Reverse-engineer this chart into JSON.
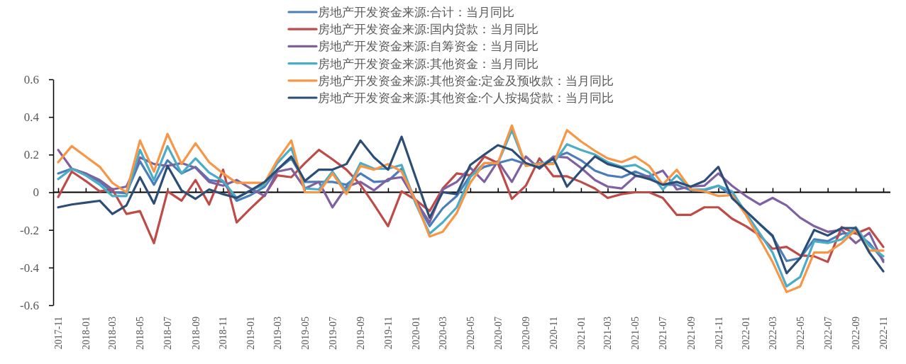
{
  "chart_data": {
    "type": "line",
    "x": [
      "2017-11",
      "2017-12",
      "2018-01",
      "2018-02",
      "2018-03",
      "2018-04",
      "2018-05",
      "2018-06",
      "2018-07",
      "2018-08",
      "2018-09",
      "2018-10",
      "2018-11",
      "2018-12",
      "2019-01",
      "2019-02",
      "2019-03",
      "2019-04",
      "2019-05",
      "2019-06",
      "2019-07",
      "2019-08",
      "2019-09",
      "2019-10",
      "2019-11",
      "2019-12",
      "2020-01",
      "2020-02",
      "2020-03",
      "2020-04",
      "2020-05",
      "2020-06",
      "2020-07",
      "2020-08",
      "2020-09",
      "2020-10",
      "2020-11",
      "2020-12",
      "2021-01",
      "2021-02",
      "2021-03",
      "2021-04",
      "2021-05",
      "2021-06",
      "2021-07",
      "2021-08",
      "2021-09",
      "2021-10",
      "2021-11",
      "2021-12",
      "2022-01",
      "2022-02",
      "2022-03",
      "2022-04",
      "2022-05",
      "2022-06",
      "2022-07",
      "2022-08",
      "2022-09",
      "2022-10",
      "2022-11"
    ],
    "series": [
      {
        "name": "房地产开发资金来源:合计：当月同比",
        "color": "#4a7ebb",
        "values": [
          0.1,
          0.125,
          0.1,
          0.055,
          0.0,
          -0.005,
          0.165,
          0.04,
          0.17,
          0.1,
          0.135,
          0.065,
          0.055,
          -0.045,
          -0.015,
          0.03,
          0.12,
          0.18,
          0.055,
          0.055,
          0.055,
          0.04,
          0.1,
          0.055,
          0.06,
          0.125,
          -0.045,
          -0.18,
          -0.085,
          -0.02,
          0.09,
          0.135,
          0.155,
          0.175,
          0.15,
          0.135,
          0.185,
          0.21,
          0.17,
          0.115,
          0.09,
          0.08,
          0.11,
          0.08,
          0.04,
          0.04,
          0.01,
          0.01,
          0.035,
          -0.02,
          -0.1,
          -0.17,
          -0.235,
          -0.365,
          -0.35,
          -0.25,
          -0.26,
          -0.22,
          -0.215,
          -0.27,
          -0.36
        ]
      },
      {
        "name": "房地产开发资金来源:国内贷款：当月同比",
        "color": "#be4b48",
        "values": [
          -0.025,
          0.11,
          0.06,
          0.005,
          0.015,
          -0.115,
          -0.1,
          -0.27,
          0.005,
          -0.045,
          0.065,
          -0.065,
          0.12,
          -0.16,
          -0.085,
          -0.015,
          0.09,
          0.08,
          0.155,
          0.225,
          0.175,
          0.12,
          0.04,
          -0.065,
          -0.18,
          0.005,
          -0.04,
          -0.1,
          0.02,
          0.1,
          0.09,
          0.19,
          0.155,
          -0.035,
          0.035,
          0.18,
          0.085,
          0.085,
          0.055,
          0.02,
          -0.03,
          -0.01,
          0.0,
          0.0,
          -0.03,
          -0.12,
          -0.12,
          -0.08,
          -0.08,
          -0.14,
          -0.18,
          -0.23,
          -0.3,
          -0.29,
          -0.335,
          -0.34,
          -0.37,
          -0.185,
          -0.22,
          -0.19,
          -0.29
        ]
      },
      {
        "name": "房地产开发资金来源:自筹资金：当月同比",
        "color": "#7f60a0",
        "values": [
          0.225,
          0.125,
          0.1,
          0.065,
          0.015,
          0.03,
          0.185,
          0.15,
          0.14,
          0.155,
          0.13,
          0.055,
          0.035,
          0.065,
          0.02,
          -0.02,
          0.11,
          0.125,
          0.02,
          0.055,
          -0.08,
          0.03,
          0.055,
          0.01,
          0.07,
          0.08,
          -0.045,
          -0.16,
          0.015,
          0.055,
          0.13,
          0.055,
          0.165,
          0.055,
          0.19,
          0.125,
          0.19,
          0.185,
          0.13,
          0.065,
          0.03,
          0.02,
          0.085,
          0.085,
          0.115,
          0.015,
          0.03,
          0.035,
          0.1,
          0.035,
          -0.02,
          -0.065,
          -0.03,
          -0.07,
          -0.135,
          -0.18,
          -0.21,
          -0.2,
          -0.27,
          -0.215,
          -0.37
        ]
      },
      {
        "name": "房地产开发资金来源:其他资金：当月同比",
        "color": "#4bacc6",
        "values": [
          0.07,
          0.125,
          0.09,
          0.04,
          -0.02,
          -0.02,
          0.225,
          0.065,
          0.245,
          0.1,
          0.18,
          0.105,
          0.06,
          -0.03,
          0.01,
          0.04,
          0.155,
          0.235,
          0.02,
          0.015,
          0.11,
          0.005,
          0.155,
          0.125,
          0.125,
          0.145,
          -0.06,
          -0.22,
          -0.16,
          -0.08,
          0.08,
          0.155,
          0.155,
          0.33,
          0.14,
          0.155,
          0.155,
          0.255,
          0.225,
          0.2,
          0.16,
          0.135,
          0.145,
          0.105,
          0.015,
          0.09,
          0.015,
          0.015,
          0.035,
          0.005,
          -0.11,
          -0.22,
          -0.32,
          -0.5,
          -0.45,
          -0.26,
          -0.27,
          -0.25,
          -0.185,
          -0.285,
          -0.34
        ]
      },
      {
        "name": "房地产开发资金来源:其他资金:定金及预收款：当月同比",
        "color": "#f79646",
        "values": [
          0.16,
          0.245,
          0.19,
          0.135,
          0.05,
          0.0,
          0.275,
          0.11,
          0.31,
          0.15,
          0.26,
          0.16,
          0.1,
          0.05,
          0.05,
          0.05,
          0.17,
          0.275,
          0.0,
          0.0,
          0.1,
          -0.01,
          0.14,
          0.12,
          0.15,
          0.11,
          -0.045,
          -0.235,
          -0.21,
          -0.11,
          0.05,
          0.155,
          0.155,
          0.355,
          0.14,
          0.15,
          0.15,
          0.33,
          0.27,
          0.22,
          0.18,
          0.16,
          0.19,
          0.14,
          0.04,
          0.12,
          0.015,
          0.005,
          -0.02,
          -0.015,
          -0.12,
          -0.25,
          -0.37,
          -0.53,
          -0.5,
          -0.32,
          -0.32,
          -0.27,
          -0.2,
          -0.31,
          -0.31
        ]
      },
      {
        "name": "房地产开发资金来源:其他资金:个人按揭贷款：当月同比",
        "color": "#2c4d75",
        "values": [
          -0.08,
          -0.065,
          -0.055,
          -0.045,
          -0.115,
          -0.07,
          0.08,
          -0.06,
          0.14,
          0.01,
          -0.035,
          0.015,
          -0.01,
          -0.03,
          0.01,
          0.055,
          0.12,
          0.19,
          0.06,
          0.12,
          0.12,
          0.15,
          0.275,
          0.185,
          0.12,
          0.295,
          0.08,
          -0.135,
          0.0,
          -0.01,
          0.145,
          0.2,
          0.25,
          0.225,
          0.155,
          0.13,
          0.18,
          0.03,
          0.115,
          0.19,
          0.15,
          0.13,
          0.09,
          0.07,
          0.04,
          0.055,
          0.03,
          0.06,
          0.135,
          -0.03,
          -0.1,
          -0.17,
          -0.23,
          -0.43,
          -0.35,
          -0.2,
          -0.23,
          -0.19,
          -0.19,
          -0.32,
          -0.42
        ]
      }
    ],
    "xlim": [
      "2017-11",
      "2022-11"
    ],
    "xticks": [
      {
        "value": "2017-11",
        "label": "2017-11"
      },
      {
        "value": "2018-01",
        "label": "2018-01"
      },
      {
        "value": "2018-03",
        "label": "2018-03"
      },
      {
        "value": "2018-05",
        "label": "2018-05"
      },
      {
        "value": "2018-07",
        "label": "2018-07"
      },
      {
        "value": "2018-09",
        "label": "2018-09"
      },
      {
        "value": "2018-11",
        "label": "2018-11"
      },
      {
        "value": "2019-01",
        "label": "2019-01"
      },
      {
        "value": "2019-03",
        "label": "2019-03"
      },
      {
        "value": "2019-05",
        "label": "2019-05"
      },
      {
        "value": "2019-07",
        "label": "2019-07"
      },
      {
        "value": "2019-09",
        "label": "2019-09"
      },
      {
        "value": "2019-11",
        "label": "2019-11"
      },
      {
        "value": "2020-01",
        "label": "2020-01"
      },
      {
        "value": "2020-03",
        "label": "2020-03"
      },
      {
        "value": "2020-05",
        "label": "2020-05"
      },
      {
        "value": "2020-07",
        "label": "2020-07"
      },
      {
        "value": "2020-09",
        "label": "2020-09"
      },
      {
        "value": "2020-11",
        "label": "2020-11"
      },
      {
        "value": "2021-01",
        "label": "2021-01"
      },
      {
        "value": "2021-03",
        "label": "2021-03"
      },
      {
        "value": "2021-05",
        "label": "2021-05"
      },
      {
        "value": "2021-07",
        "label": "2021-07"
      },
      {
        "value": "2021-09",
        "label": "2021-09"
      },
      {
        "value": "2021-11",
        "label": "2021-11"
      },
      {
        "value": "2022-01",
        "label": "2022-01"
      },
      {
        "value": "2022-03",
        "label": "2022-03"
      },
      {
        "value": "2022-05",
        "label": "2022-05"
      },
      {
        "value": "2022-07",
        "label": "2022-07"
      },
      {
        "value": "2022-09",
        "label": "2022-09"
      },
      {
        "value": "2022-11",
        "label": "2022-11"
      }
    ],
    "ylim": [
      -0.6,
      0.6
    ],
    "yticks": [
      -0.6,
      -0.4,
      -0.2,
      0,
      0.2,
      0.4,
      0.6
    ],
    "legend": "top",
    "marker": "none",
    "line_style": "solid"
  }
}
